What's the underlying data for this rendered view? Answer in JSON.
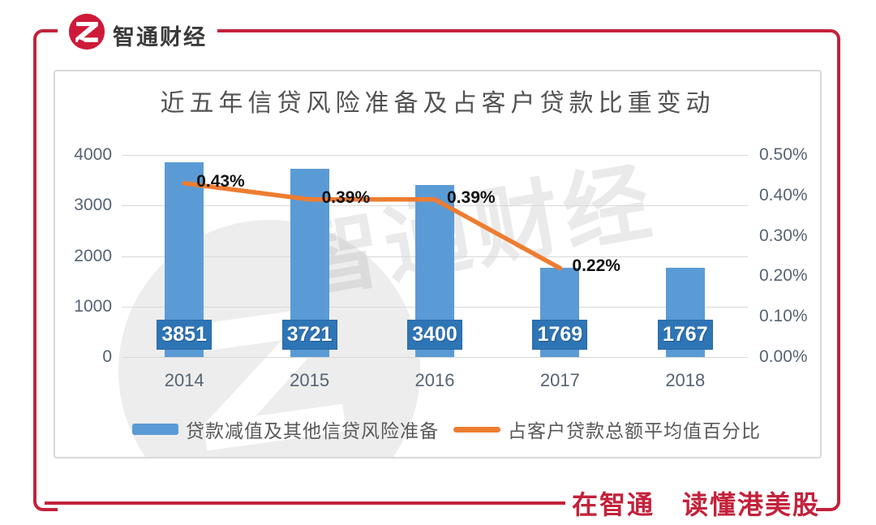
{
  "brand": {
    "name": "智通财经"
  },
  "tagline": "在智通　读懂港美股",
  "colors": {
    "brand_red": "#c3223b",
    "bar_fill": "#5b9bd5",
    "bar_label_bg": "#2e75b6",
    "line_orange": "#ed7d31",
    "gridline": "#d9d9d9",
    "axis_text": "#566372",
    "title_text": "#525252",
    "legend_text": "#595959"
  },
  "chart_data": {
    "type": "bar",
    "title": "近五年信贷风险准备及占客户贷款比重变动",
    "categories": [
      "2014",
      "2015",
      "2016",
      "2017",
      "2018"
    ],
    "series": [
      {
        "name": "贷款减值及其他信贷风险准备",
        "type": "bar",
        "axis": "left",
        "values": [
          3851,
          3721,
          3400,
          1769,
          1767
        ],
        "value_labels": [
          "3851",
          "3721",
          "3400",
          "1769",
          "1767"
        ]
      },
      {
        "name": "占客户贷款总额平均值百分比",
        "type": "line",
        "axis": "right",
        "values": [
          0.43,
          0.39,
          0.39,
          0.22,
          null
        ],
        "value_labels": [
          "0.43%",
          "0.39%",
          "0.39%",
          "0.22%",
          null
        ]
      }
    ],
    "left_axis": {
      "min": 0,
      "max": 4000,
      "tick_labels": [
        "4000",
        "3000",
        "2000",
        "1000",
        "0"
      ]
    },
    "right_axis": {
      "min": 0,
      "max": 0.5,
      "tick_labels": [
        "0.50%",
        "0.40%",
        "0.30%",
        "0.20%",
        "0.10%",
        "0.00%"
      ]
    },
    "grid": true,
    "legend_position": "bottom",
    "watermark_text": "智通财经"
  }
}
